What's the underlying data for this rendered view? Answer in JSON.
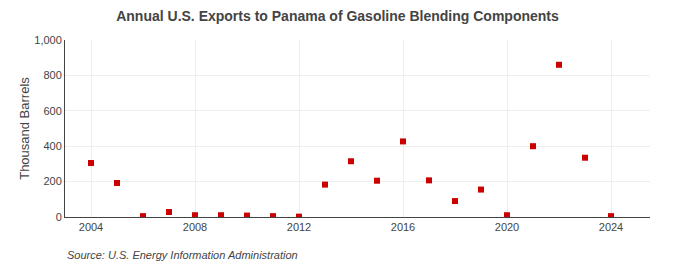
{
  "chart_data": {
    "type": "scatter",
    "title": "Annual U.S. Exports to Panama of Gasoline Blending Components",
    "ylabel": "Thousand Barrels",
    "annotations": [
      "Source: U.S. Energy Information Administration"
    ],
    "x": [
      2004,
      2005,
      2006,
      2007,
      2008,
      2009,
      2010,
      2011,
      2012,
      2013,
      2014,
      2015,
      2016,
      2017,
      2018,
      2019,
      2020,
      2021,
      2022,
      2023,
      2024
    ],
    "values": [
      305,
      192,
      5,
      28,
      10,
      10,
      8,
      5,
      2,
      183,
      315,
      205,
      427,
      207,
      90,
      155,
      10,
      400,
      860,
      335,
      5
    ],
    "color": "#cc0000",
    "marker": "square",
    "xlim": [
      2003.0,
      2025.5
    ],
    "xticks": [
      2004,
      2008,
      2012,
      2016,
      2020,
      2024
    ],
    "ylim": [
      0,
      1000
    ],
    "yticks": [
      0,
      200,
      400,
      600,
      800,
      {
        "value": 1000,
        "label": "1,000"
      }
    ],
    "grid": true
  }
}
